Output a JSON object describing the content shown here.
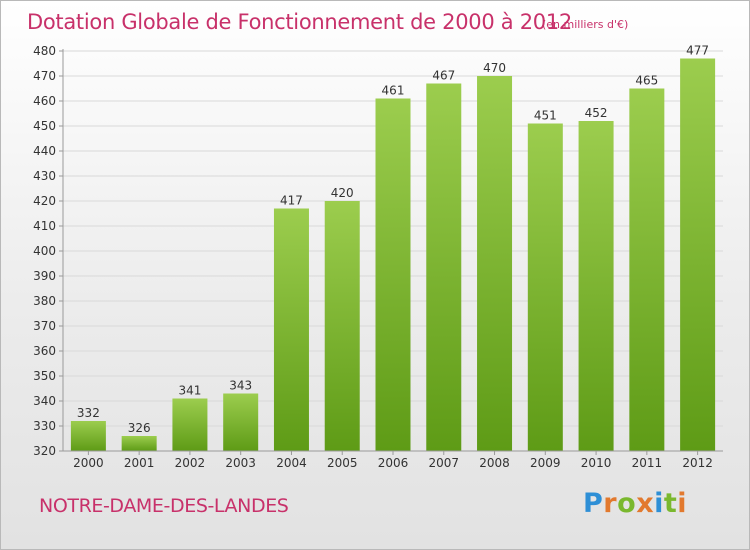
{
  "header": {
    "title": "Dotation Globale de Fonctionnement de 2000 à 2012",
    "unit_note": "(en milliers d'€)"
  },
  "commune": "NOTRE-DAME-DES-LANDES",
  "logo": {
    "text": "Proxiti",
    "letter_colors": [
      "#2e8fd6",
      "#e2792e",
      "#7ab82e",
      "#e2792e",
      "#2e8fd6",
      "#7ab82e",
      "#e2792e"
    ]
  },
  "colors": {
    "bar_top": "#9ccd4e",
    "bar_bottom": "#5e9b16",
    "grid": "#d9d9d9",
    "axis": "#9a9a9a",
    "text": "#333333",
    "accent": "#c8316a"
  },
  "chart_data": {
    "type": "bar",
    "categories": [
      "2000",
      "2001",
      "2002",
      "2003",
      "2004",
      "2005",
      "2006",
      "2007",
      "2008",
      "2009",
      "2010",
      "2011",
      "2012"
    ],
    "values": [
      332,
      326,
      341,
      343,
      417,
      420,
      461,
      467,
      470,
      451,
      452,
      465,
      477
    ],
    "ylim": [
      320,
      480
    ],
    "yticks": [
      320,
      330,
      340,
      350,
      360,
      370,
      380,
      390,
      400,
      410,
      420,
      430,
      440,
      450,
      460,
      470,
      480
    ],
    "grid": true,
    "data_labels": true
  }
}
